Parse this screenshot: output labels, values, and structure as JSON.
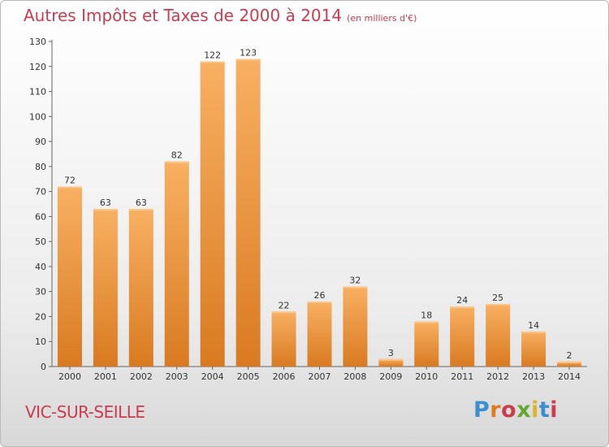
{
  "header": {
    "title": "Autres Impôts et Taxes de 2000 à 2014",
    "subtitle": "(en milliers d'€)"
  },
  "footer": {
    "place": "VIC-SUR-SEILLE",
    "logo": "Proxiti"
  },
  "logo_letters": [
    {
      "char": "P",
      "color": "#3b8fd1"
    },
    {
      "char": "r",
      "color": "#e07c1f"
    },
    {
      "char": "o",
      "color": "#cc3b4e"
    },
    {
      "char": "x",
      "color": "#63a833"
    },
    {
      "char": "i",
      "color": "#e0b21f"
    },
    {
      "char": "t",
      "color": "#3b8fd1"
    },
    {
      "char": "i",
      "color": "#cc3b4e"
    }
  ],
  "colors": {
    "accent": "#cc3b4e",
    "bar_light": "#f6ab5c",
    "bar_dark": "#d97a21"
  },
  "chart_data": {
    "type": "bar",
    "title": "Autres Impôts et Taxes de 2000 à 2014",
    "subtitle": "(en milliers d'€)",
    "categories": [
      "2000",
      "2001",
      "2002",
      "2003",
      "2004",
      "2005",
      "2006",
      "2007",
      "2008",
      "2009",
      "2010",
      "2011",
      "2012",
      "2013",
      "2014"
    ],
    "values": [
      72,
      63,
      63,
      82,
      122,
      123,
      22,
      26,
      32,
      3,
      18,
      24,
      25,
      14,
      2
    ],
    "ylim": [
      0,
      130
    ],
    "yticks": [
      0,
      10,
      20,
      30,
      40,
      50,
      60,
      70,
      80,
      90,
      100,
      110,
      120,
      130
    ],
    "grid": false,
    "data_labels": true
  }
}
